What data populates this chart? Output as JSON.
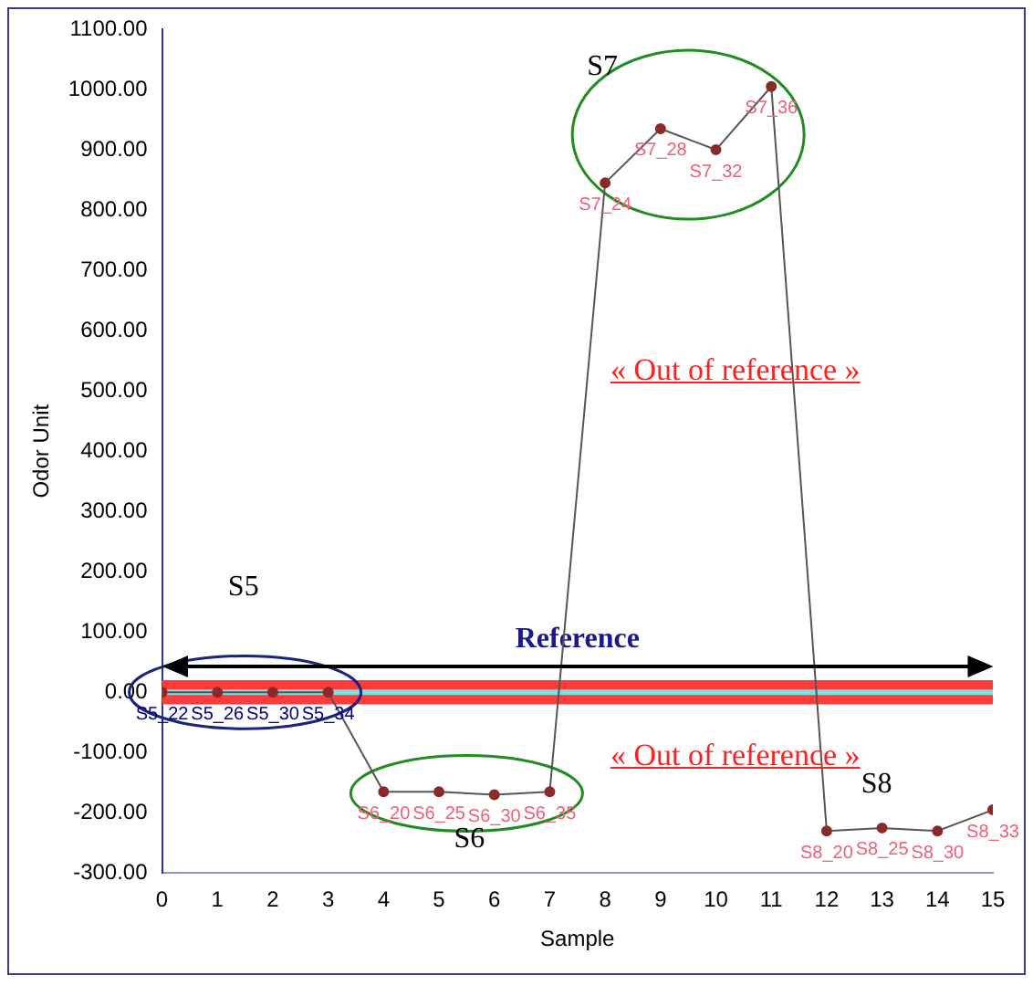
{
  "chart_data": {
    "type": "line",
    "xlabel": "Sample",
    "ylabel": "Odor Unit",
    "x": [
      0,
      1,
      2,
      3,
      4,
      5,
      6,
      7,
      8,
      9,
      10,
      11,
      12,
      13,
      14,
      15
    ],
    "series": [
      {
        "color": "#8b2a2a",
        "values": [
          0,
          0,
          0,
          0,
          -165,
          -165,
          -170,
          -165,
          845,
          935,
          900,
          1005,
          -230,
          -225,
          -230,
          -195
        ]
      }
    ],
    "xlim": [
      0,
      15
    ],
    "xticks": [
      0,
      1,
      2,
      3,
      4,
      5,
      6,
      7,
      8,
      9,
      10,
      11,
      12,
      13,
      14,
      15
    ],
    "ylim": [
      -300,
      1100
    ],
    "yticks": [
      {
        "value": -300,
        "label": "-300.00"
      },
      {
        "value": -200,
        "label": "-200.00"
      },
      {
        "value": -100,
        "label": "-100.00"
      },
      {
        "value": 0,
        "label": "0.00"
      },
      {
        "value": 100,
        "label": "100.00"
      },
      {
        "value": 200,
        "label": "200.00"
      },
      {
        "value": 300,
        "label": "300.00"
      },
      {
        "value": 400,
        "label": "400.00"
      },
      {
        "value": 500,
        "label": "500.00"
      },
      {
        "value": 600,
        "label": "600.00"
      },
      {
        "value": 700,
        "label": "700.00"
      },
      {
        "value": 800,
        "label": "800.00"
      },
      {
        "value": 900,
        "label": "900.00"
      },
      {
        "value": 1000,
        "label": "1000.00"
      },
      {
        "value": 1100,
        "label": "1100.00"
      }
    ],
    "grid": false,
    "legend": false,
    "marker": "circle",
    "line_style": "solid",
    "bands": [
      {
        "axis": "y",
        "from": -20,
        "to": 20,
        "label": "Reference",
        "color": "#ff3b3b"
      }
    ],
    "ref_lines": [
      {
        "axis": "y",
        "value": 0,
        "color": "#7fe0e0"
      }
    ],
    "annotations": [
      {
        "text": "S5_22",
        "x": 0,
        "y": 0
      },
      {
        "text": "S5_26",
        "x": 1,
        "y": 0
      },
      {
        "text": "S5_30",
        "x": 2,
        "y": 0
      },
      {
        "text": "S5_34",
        "x": 3,
        "y": 0
      },
      {
        "text": "S6_20",
        "x": 4,
        "y": -165
      },
      {
        "text": "S6_25",
        "x": 5,
        "y": -165
      },
      {
        "text": "S6_30",
        "x": 6,
        "y": -170
      },
      {
        "text": "S6_35",
        "x": 7,
        "y": -165
      },
      {
        "text": "S7_24",
        "x": 8,
        "y": 845
      },
      {
        "text": "S7_28",
        "x": 9,
        "y": 935
      },
      {
        "text": "S7_32",
        "x": 10,
        "y": 900
      },
      {
        "text": "S7_36",
        "x": 11,
        "y": 1005
      },
      {
        "text": "S8_20",
        "x": 12,
        "y": -230
      },
      {
        "text": "S8_25",
        "x": 13,
        "y": -225
      },
      {
        "text": "S8_30",
        "x": 14,
        "y": -230
      },
      {
        "text": "S8_33",
        "x": 15,
        "y": -195
      },
      "S5",
      "S6",
      "S7",
      "S8",
      "« Out of reference »",
      "« Out of reference »"
    ]
  }
}
